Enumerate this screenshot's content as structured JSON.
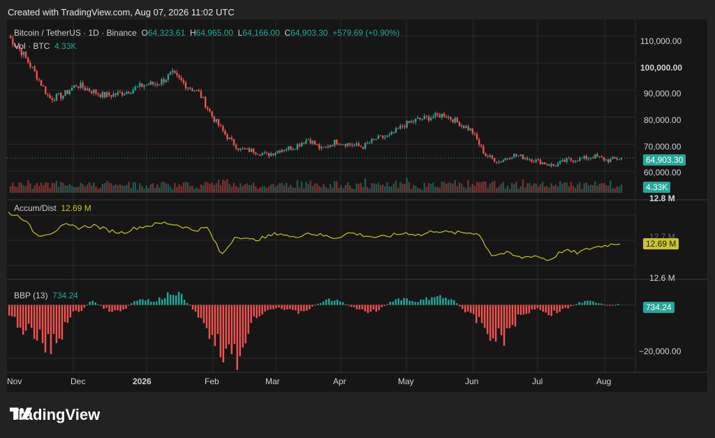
{
  "header": {
    "created": "Created with TradingView.com, Aug 07, 2026 11:02 UTC"
  },
  "legend": {
    "symbol": "Bitcoin / TetherUS · 1D · Binance",
    "o_label": "O",
    "o_val": "64,323.61",
    "h_label": "H",
    "h_val": "64,965.00",
    "l_label": "L",
    "l_val": "64,166.00",
    "c_label": "C",
    "c_val": "64,903.30",
    "change": "+579.69 (+0.90%)",
    "vol_label": "Vol · BTC",
    "vol_val": "4.33K",
    "ad_label": "Accum/Dist",
    "ad_val": "12.69 M",
    "bbp_label": "BBP (13)",
    "bbp_val": "734.24"
  },
  "axis": {
    "price_ticks": [
      "110,000.00",
      "100,000.00",
      "90,000.00",
      "80,000.00",
      "70,000.00",
      "60,000.00"
    ],
    "price_tag": "64,903.30",
    "vol_tag": "4.33K",
    "ad_ticks": [
      "12.8 M",
      "12.6 M"
    ],
    "ad_partial": "12.7 M",
    "ad_tag": "12.69 M",
    "bbp_tick": "−20,000.00",
    "bbp_tag": "734.24",
    "months": [
      "Nov",
      "Dec",
      "2026",
      "Feb",
      "Mar",
      "Apr",
      "May",
      "Jun",
      "Jul",
      "Aug"
    ]
  },
  "brand": {
    "name": "TradingView"
  },
  "colors": {
    "up": "#26a69a",
    "down": "#ef5350",
    "ad": "#c9c432",
    "grid": "#2b2b2b",
    "bg": "#161616",
    "page": "#222222"
  },
  "chart_data": {
    "type": "candlestick",
    "title": "Bitcoin / TetherUS · 1D · Binance",
    "ohlc_last": {
      "open": 64323.61,
      "high": 64965.0,
      "low": 64166.0,
      "close": 64903.3,
      "change": 579.69,
      "change_pct": 0.9
    },
    "price_range": [
      52000,
      113000
    ],
    "close_series": {
      "x": [
        "Nov 01",
        "Nov 06",
        "Nov 12",
        "Nov 18",
        "Nov 22",
        "Nov 28",
        "Dec 05",
        "Dec 12",
        "Dec 19",
        "Dec 26",
        "Jan 02",
        "Jan 09",
        "Jan 15",
        "Jan 20",
        "Jan 25",
        "Jan 30",
        "Feb 03",
        "Feb 06",
        "Feb 10",
        "Feb 17",
        "Feb 24",
        "Mar 03",
        "Mar 10",
        "Mar 17",
        "Mar 24",
        "Mar 31",
        "Apr 07",
        "Apr 14",
        "Apr 21",
        "Apr 28",
        "May 05",
        "May 12",
        "May 19",
        "May 26",
        "Jun 01",
        "Jun 05",
        "Jun 10",
        "Jun 16",
        "Jun 22",
        "Jun 28",
        "Jul 05",
        "Jul 12",
        "Jul 19",
        "Jul 26",
        "Aug 02",
        "Aug 07"
      ],
      "close": [
        110000,
        104000,
        96000,
        87000,
        88000,
        92000,
        90000,
        88000,
        88500,
        90000,
        92000,
        92500,
        96000,
        92000,
        89000,
        80000,
        73000,
        68000,
        67500,
        66000,
        68000,
        69000,
        72000,
        68000,
        71000,
        70000,
        69000,
        72000,
        73000,
        77000,
        79000,
        80000,
        81000,
        78000,
        75000,
        66000,
        63500,
        66000,
        65000,
        63500,
        62000,
        64000,
        64500,
        65500,
        64000,
        64903
      ]
    },
    "volume": {
      "last": 4.33,
      "unit": "K BTC"
    },
    "accum_dist": {
      "range": [
        12.55,
        12.85
      ],
      "last": 12.69,
      "values": [
        12.81,
        12.79,
        12.72,
        12.73,
        12.76,
        12.75,
        12.76,
        12.74,
        12.73,
        12.75,
        12.76,
        12.77,
        12.76,
        12.74,
        12.75,
        12.64,
        12.72,
        12.7,
        12.71,
        12.73,
        12.71,
        12.73,
        12.72,
        12.71,
        12.73,
        12.72,
        12.71,
        12.72,
        12.73,
        12.72,
        12.74,
        12.73,
        12.73,
        12.73,
        12.64,
        12.65,
        12.63,
        12.64,
        12.62,
        12.66,
        12.65,
        12.67,
        12.68,
        12.69
      ]
    },
    "bbp": {
      "length": 13,
      "last": 734.24,
      "range": [
        -24000,
        8000
      ],
      "values": [
        -5000,
        -8000,
        -12000,
        -15000,
        -18000,
        -12000,
        -4000,
        -2000,
        2000,
        -1000,
        -3000,
        -2500,
        1500,
        3000,
        1000,
        4000,
        6000,
        2000,
        -3000,
        -9000,
        -15000,
        -20000,
        -24000,
        -10000,
        -4000,
        -2000,
        -1000,
        -2500,
        -3000,
        -1500,
        1000,
        2500,
        1500,
        -1000,
        -2000,
        -3000,
        -1000,
        2000,
        3000,
        1500,
        2000,
        4000,
        3000,
        1500,
        -3000,
        -6000,
        -10000,
        -15000,
        -12000,
        -6000,
        -3000,
        -1000,
        -4000,
        -2500,
        -1000,
        1000,
        1500,
        800,
        -500,
        734
      ]
    },
    "x_months": [
      "Nov",
      "Dec",
      "2026",
      "Feb",
      "Mar",
      "Apr",
      "May",
      "Jun",
      "Jul",
      "Aug"
    ]
  }
}
